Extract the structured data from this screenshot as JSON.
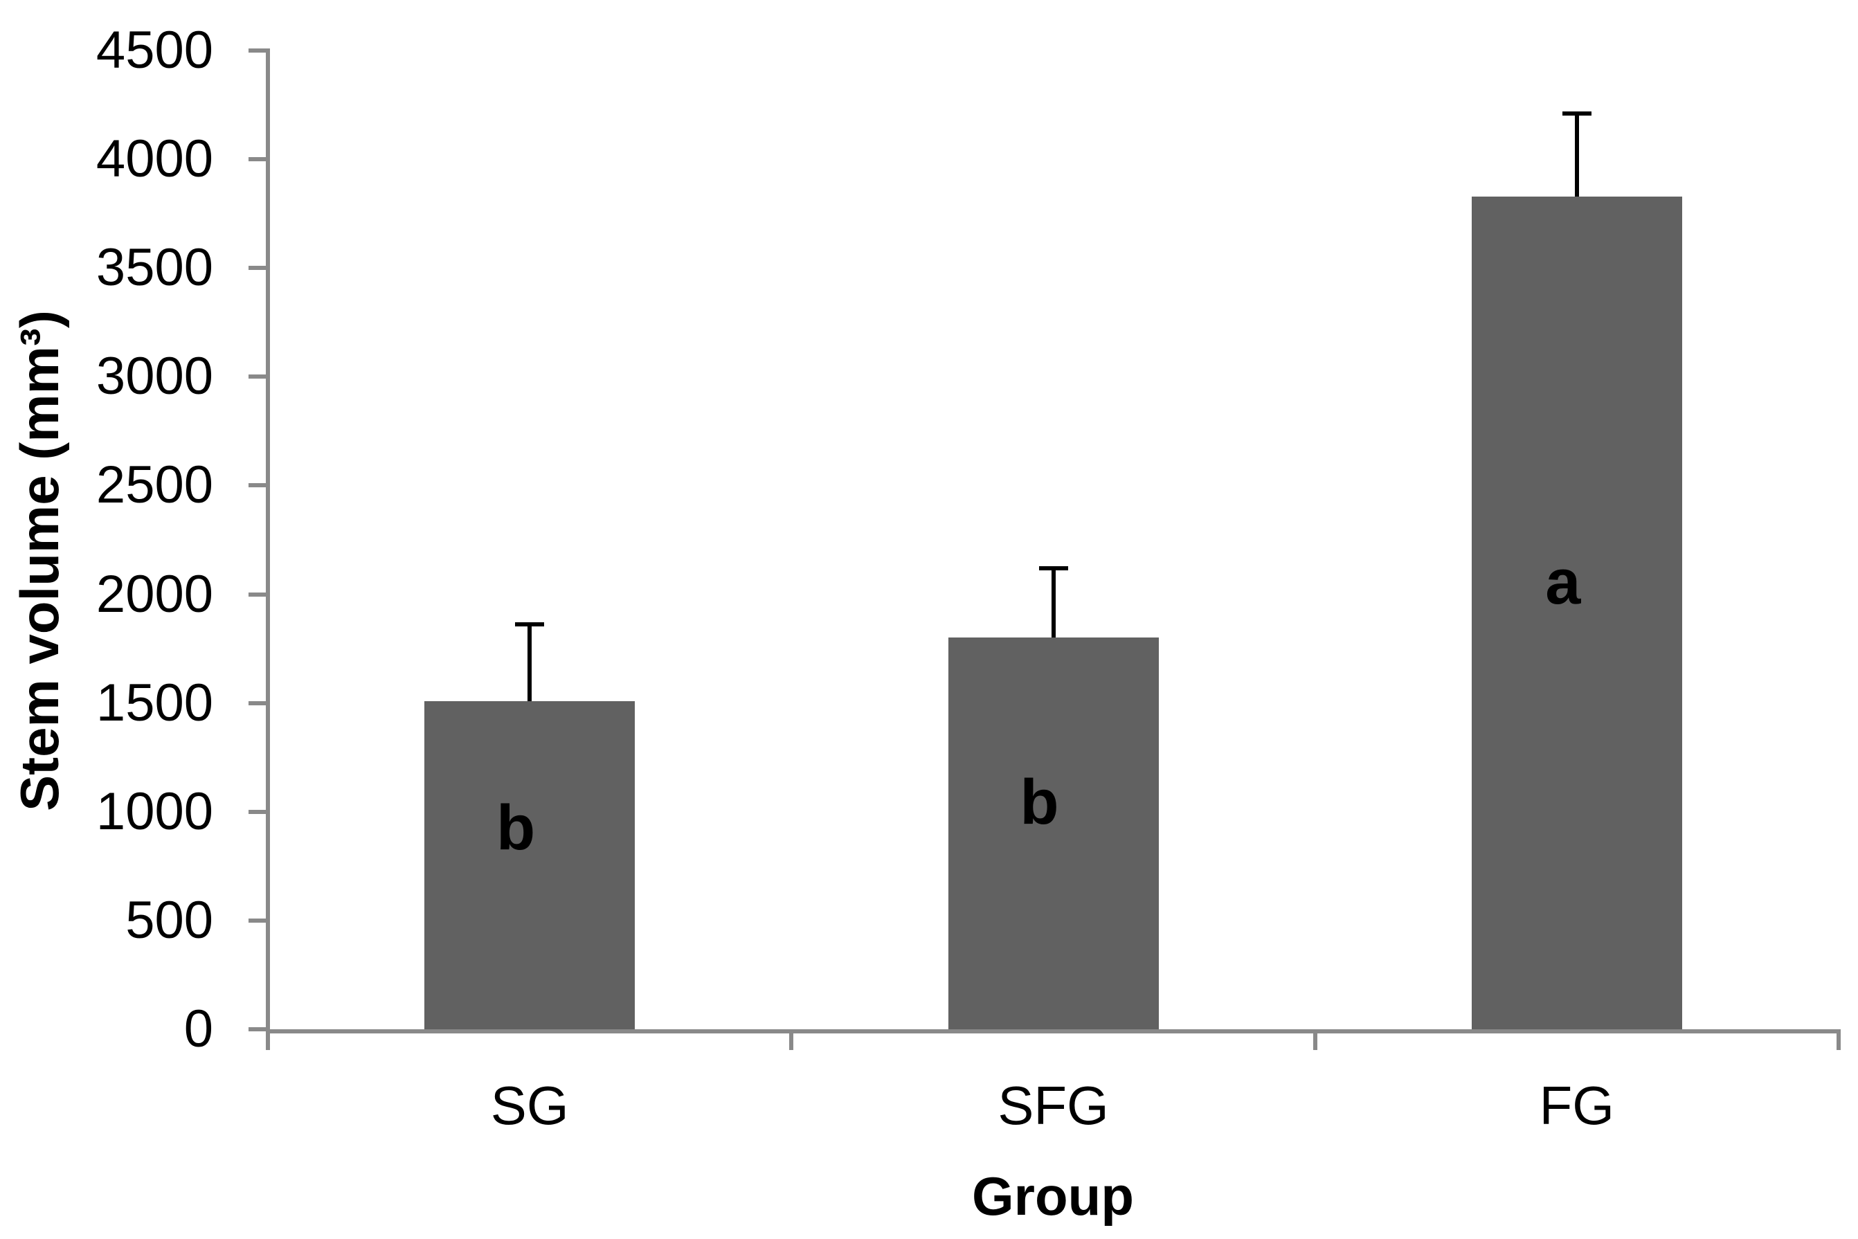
{
  "chart_data": {
    "type": "bar",
    "title": "",
    "categories": [
      "SG",
      "SFG",
      "FG"
    ],
    "values": [
      1510,
      1800,
      3830
    ],
    "error_bar_tops": [
      1870,
      2130,
      4220
    ],
    "bar_letters": [
      "b",
      "b",
      "a"
    ],
    "bar_letter_positions": [
      925,
      1045,
      2055
    ],
    "xlabel": "Group",
    "ylabel": "Stem volume (mm³)",
    "ylim": [
      0,
      4500
    ],
    "ytick_step": 500,
    "ytick_labels": [
      "0",
      "500",
      "1000",
      "1500",
      "2000",
      "2500",
      "3000",
      "3500",
      "4000",
      "4500"
    ],
    "legend": "none",
    "grid": "off",
    "bar_color": "#616161",
    "axis_color": "#898989",
    "text_color": "#000000"
  }
}
